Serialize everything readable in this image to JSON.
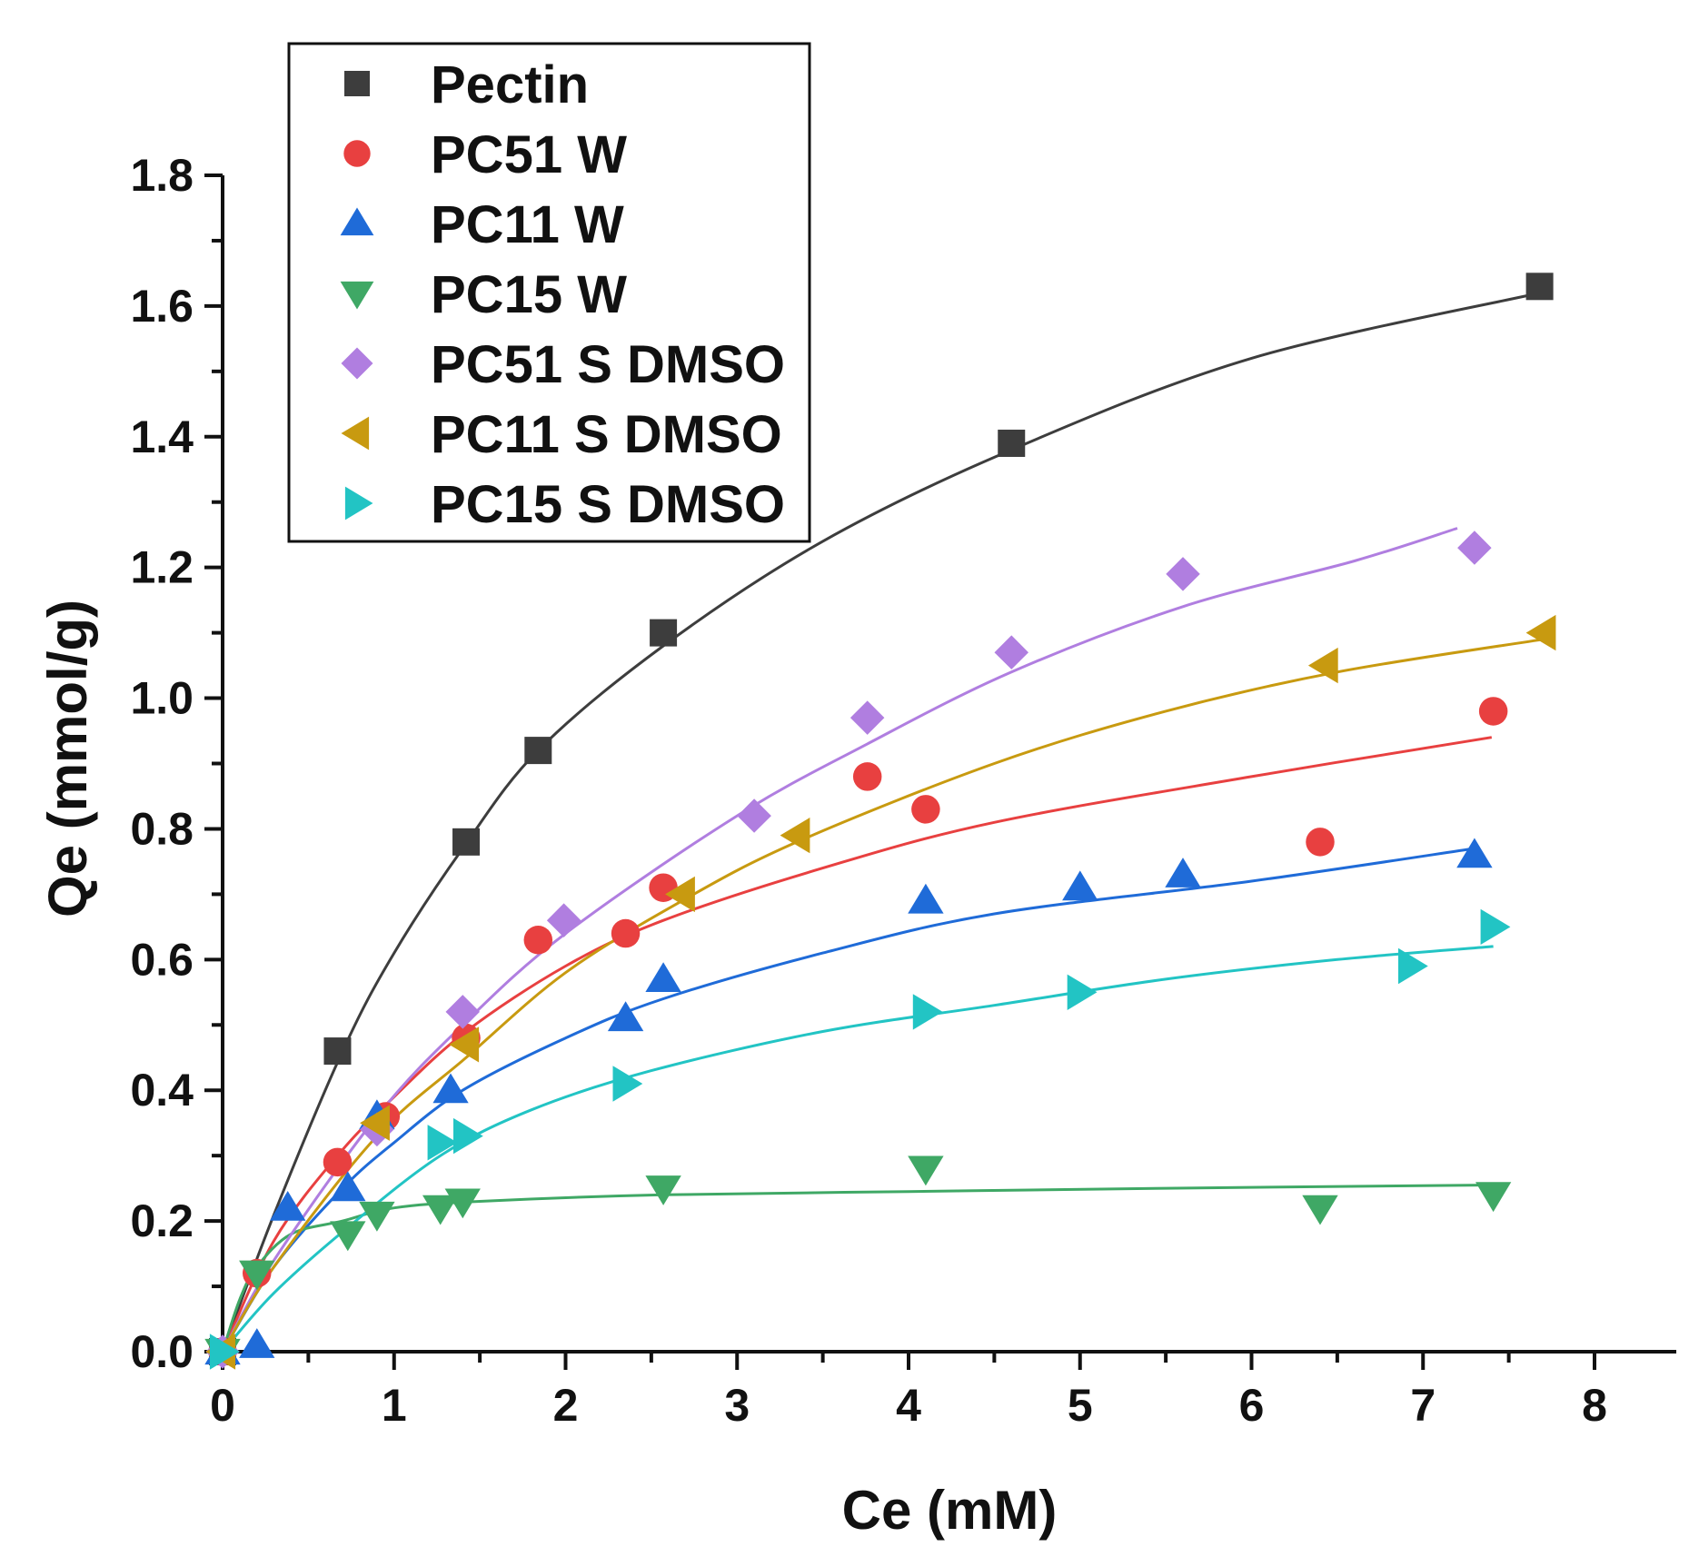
{
  "chart_data": {
    "type": "scatter",
    "title": "",
    "xlabel": "Ce (mM)",
    "ylabel": "Qe (mmol/g)",
    "xlim": [
      0,
      8.5
    ],
    "ylim": [
      0,
      1.8
    ],
    "x_ticks": [
      "0",
      "1",
      "2",
      "3",
      "4",
      "5",
      "6",
      "7",
      "8"
    ],
    "y_ticks": [
      "0.0",
      "0.2",
      "0.4",
      "0.6",
      "0.8",
      "1.0",
      "1.2",
      "1.4",
      "1.6",
      "1.8"
    ],
    "legend_position": "top-left",
    "series": [
      {
        "name": "Pectin",
        "color": "#3d3d3d",
        "line_color": "#3d3d3d",
        "marker": "square",
        "points": [
          [
            0,
            0
          ],
          [
            0.67,
            0.46
          ],
          [
            1.42,
            0.78
          ],
          [
            1.84,
            0.92
          ],
          [
            2.57,
            1.1
          ],
          [
            4.6,
            1.39
          ],
          [
            7.68,
            1.63
          ]
        ],
        "fit": [
          [
            0,
            0
          ],
          [
            0.3,
            0.21
          ],
          [
            0.7,
            0.46
          ],
          [
            1.0,
            0.61
          ],
          [
            1.4,
            0.77
          ],
          [
            1.84,
            0.92
          ],
          [
            2.57,
            1.08
          ],
          [
            3.5,
            1.24
          ],
          [
            4.6,
            1.38
          ],
          [
            6.0,
            1.52
          ],
          [
            7.68,
            1.62
          ]
        ]
      },
      {
        "name": "PC51 W",
        "color": "#e84040",
        "line_color": "#e84040",
        "marker": "circle",
        "points": [
          [
            0,
            0
          ],
          [
            0.2,
            0.12
          ],
          [
            0.67,
            0.29
          ],
          [
            0.95,
            0.36
          ],
          [
            1.42,
            0.48
          ],
          [
            1.84,
            0.63
          ],
          [
            2.35,
            0.64
          ],
          [
            2.57,
            0.71
          ],
          [
            3.76,
            0.88
          ],
          [
            4.1,
            0.83
          ],
          [
            6.4,
            0.78
          ],
          [
            7.41,
            0.98
          ]
        ],
        "fit": [
          [
            0,
            0
          ],
          [
            0.3,
            0.17
          ],
          [
            0.67,
            0.3
          ],
          [
            1.0,
            0.39
          ],
          [
            1.42,
            0.49
          ],
          [
            2.0,
            0.59
          ],
          [
            2.57,
            0.66
          ],
          [
            3.5,
            0.74
          ],
          [
            4.5,
            0.81
          ],
          [
            6.0,
            0.88
          ],
          [
            7.4,
            0.94
          ]
        ]
      },
      {
        "name": "PC11 W",
        "color": "#1f6bd8",
        "line_color": "#1f6bd8",
        "marker": "triangle-up",
        "points": [
          [
            0,
            0
          ],
          [
            0.2,
            0.01
          ],
          [
            0.38,
            0.22
          ],
          [
            0.73,
            0.25
          ],
          [
            0.9,
            0.36
          ],
          [
            1.33,
            0.4
          ],
          [
            2.35,
            0.51
          ],
          [
            2.57,
            0.57
          ],
          [
            4.1,
            0.69
          ],
          [
            5.0,
            0.71
          ],
          [
            5.6,
            0.73
          ],
          [
            7.3,
            0.76
          ]
        ],
        "fit": [
          [
            0,
            0
          ],
          [
            0.3,
            0.13
          ],
          [
            0.7,
            0.25
          ],
          [
            1.0,
            0.32
          ],
          [
            1.4,
            0.4
          ],
          [
            2.0,
            0.48
          ],
          [
            2.57,
            0.54
          ],
          [
            3.5,
            0.61
          ],
          [
            4.5,
            0.67
          ],
          [
            6.0,
            0.72
          ],
          [
            7.3,
            0.77
          ]
        ]
      },
      {
        "name": "PC15 W",
        "color": "#3fa865",
        "line_color": "#3fa865",
        "marker": "triangle-down",
        "points": [
          [
            0,
            0
          ],
          [
            0.2,
            0.12
          ],
          [
            0.73,
            0.18
          ],
          [
            0.9,
            0.21
          ],
          [
            1.27,
            0.22
          ],
          [
            1.4,
            0.23
          ],
          [
            2.57,
            0.25
          ],
          [
            4.1,
            0.28
          ],
          [
            6.4,
            0.22
          ],
          [
            7.41,
            0.24
          ]
        ],
        "fit": [
          [
            0,
            0
          ],
          [
            0.1,
            0.08
          ],
          [
            0.2,
            0.13
          ],
          [
            0.4,
            0.18
          ],
          [
            0.7,
            0.2
          ],
          [
            1.0,
            0.22
          ],
          [
            1.5,
            0.23
          ],
          [
            2.57,
            0.24
          ],
          [
            4.0,
            0.245
          ],
          [
            5.5,
            0.25
          ],
          [
            7.41,
            0.255
          ]
        ]
      },
      {
        "name": "PC51 S DMSO",
        "color": "#b07ee0",
        "line_color": "#b07ee0",
        "marker": "diamond",
        "points": [
          [
            0,
            0
          ],
          [
            0.9,
            0.34
          ],
          [
            1.4,
            0.52
          ],
          [
            1.99,
            0.66
          ],
          [
            3.1,
            0.82
          ],
          [
            3.76,
            0.97
          ],
          [
            4.6,
            1.07
          ],
          [
            5.6,
            1.19
          ],
          [
            7.3,
            1.23
          ]
        ],
        "fit": [
          [
            0,
            0
          ],
          [
            0.3,
            0.14
          ],
          [
            0.9,
            0.36
          ],
          [
            1.4,
            0.5
          ],
          [
            2.0,
            0.64
          ],
          [
            3.0,
            0.82
          ],
          [
            3.76,
            0.93
          ],
          [
            4.6,
            1.04
          ],
          [
            5.6,
            1.14
          ],
          [
            6.6,
            1.21
          ],
          [
            7.2,
            1.26
          ]
        ]
      },
      {
        "name": "PC11 S DMSO",
        "color": "#c89a10",
        "line_color": "#c89a10",
        "marker": "triangle-left",
        "points": [
          [
            0,
            0
          ],
          [
            0.9,
            0.35
          ],
          [
            1.42,
            0.47
          ],
          [
            2.68,
            0.7
          ],
          [
            3.35,
            0.79
          ],
          [
            6.43,
            1.05
          ],
          [
            7.7,
            1.1
          ]
        ],
        "fit": [
          [
            0,
            0
          ],
          [
            0.3,
            0.13
          ],
          [
            0.9,
            0.33
          ],
          [
            1.42,
            0.45
          ],
          [
            2.0,
            0.58
          ],
          [
            2.68,
            0.69
          ],
          [
            3.35,
            0.78
          ],
          [
            4.5,
            0.9
          ],
          [
            5.5,
            0.98
          ],
          [
            6.5,
            1.04
          ],
          [
            7.7,
            1.09
          ]
        ]
      },
      {
        "name": "PC15 S DMSO",
        "color": "#22c4c4",
        "line_color": "#22c4c4",
        "marker": "triangle-right",
        "points": [
          [
            0,
            0
          ],
          [
            1.27,
            0.32
          ],
          [
            1.42,
            0.33
          ],
          [
            2.35,
            0.41
          ],
          [
            4.1,
            0.52
          ],
          [
            5.0,
            0.55
          ],
          [
            6.93,
            0.59
          ],
          [
            7.41,
            0.65
          ]
        ],
        "fit": [
          [
            0,
            0
          ],
          [
            0.3,
            0.09
          ],
          [
            0.73,
            0.19
          ],
          [
            1.27,
            0.3
          ],
          [
            1.8,
            0.37
          ],
          [
            2.5,
            0.43
          ],
          [
            3.5,
            0.49
          ],
          [
            4.5,
            0.53
          ],
          [
            5.5,
            0.57
          ],
          [
            6.5,
            0.6
          ],
          [
            7.41,
            0.62
          ]
        ]
      }
    ]
  }
}
